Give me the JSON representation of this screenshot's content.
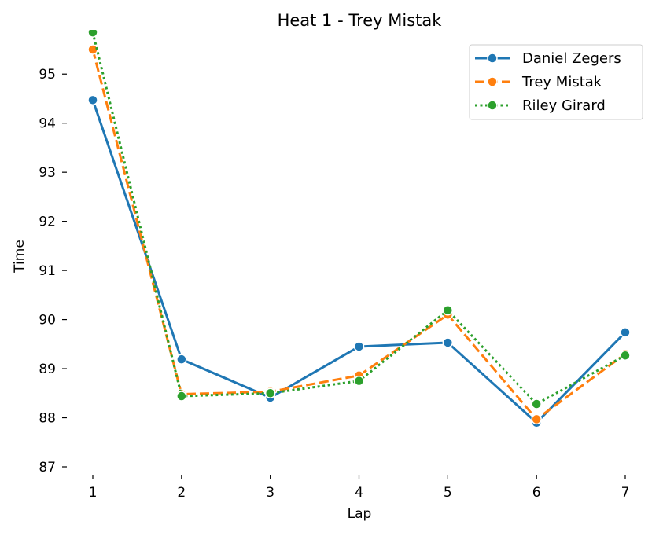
{
  "chart_data": {
    "type": "line",
    "title": "Heat 1 - Trey Mistak",
    "xlabel": "Lap",
    "ylabel": "Time",
    "x": [
      1,
      2,
      3,
      4,
      5,
      6,
      7
    ],
    "xlim": [
      1,
      7
    ],
    "ylim": [
      87,
      95.9
    ],
    "yticks": [
      87,
      88,
      89,
      90,
      91,
      92,
      93,
      94,
      95
    ],
    "grid": false,
    "legend_position": "top-right",
    "series": [
      {
        "name": "Daniel Zegers",
        "color": "#1f77b4",
        "dash": "solid",
        "values": [
          94.47,
          89.19,
          88.41,
          89.45,
          89.53,
          87.9,
          89.74
        ]
      },
      {
        "name": "Trey Mistak",
        "color": "#ff7f0e",
        "dash": "dashed",
        "values": [
          95.5,
          88.48,
          88.53,
          88.86,
          90.1,
          87.97,
          89.3
        ]
      },
      {
        "name": "Riley Girard",
        "color": "#2ca02c",
        "dash": "dotted",
        "values": [
          95.85,
          88.44,
          88.5,
          88.75,
          90.19,
          88.28,
          89.27
        ]
      }
    ]
  }
}
